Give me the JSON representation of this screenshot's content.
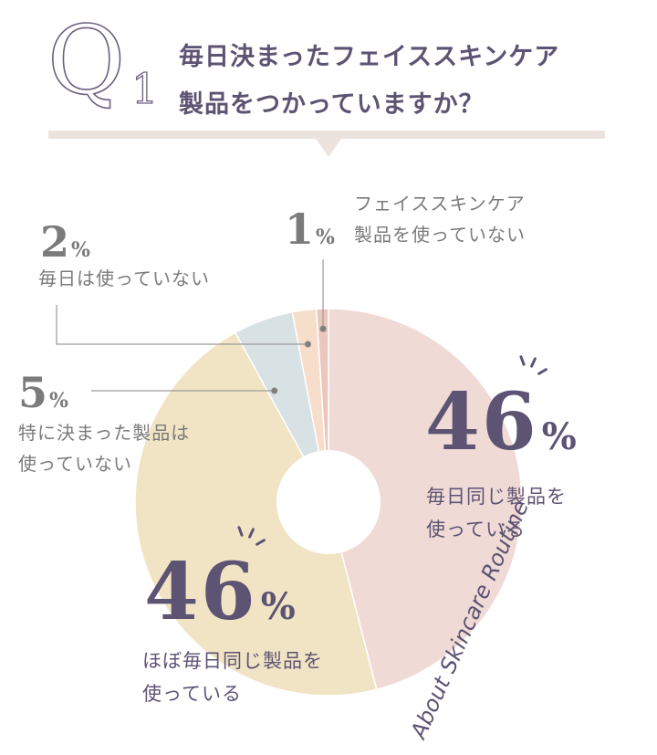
{
  "header": {
    "q_letter": "Q",
    "q_number": "1",
    "question_line1": "毎日決まったフェイススキンケア",
    "question_line2": "製品をつかっていますか？"
  },
  "side_text": "About Skincare Routine",
  "colors": {
    "accent": "#5d5373",
    "gray_text": "#7b7b7b",
    "slice_same_daily": "#f0dad6",
    "slice_mostly_same": "#f1e4c4",
    "slice_not_specific": "#d8e1e4",
    "slice_not_daily": "#f6decb",
    "slice_no_skincare": "#ebc6bc"
  },
  "chart_data": {
    "type": "pie",
    "donut": true,
    "slices": [
      {
        "label_line1": "毎日同じ製品を",
        "label_line2": "使っている",
        "value": 46,
        "number": "46",
        "sign": "%",
        "color": "#f0dad6"
      },
      {
        "label_line1": "ほぼ毎日同じ製品を",
        "label_line2": "使っている",
        "value": 46,
        "number": "46",
        "sign": "%",
        "color": "#f1e4c4"
      },
      {
        "label_line1": "特に決まった製品は",
        "label_line2": "使っていない",
        "value": 5,
        "number": "5",
        "sign": "%",
        "color": "#d8e1e4"
      },
      {
        "label_line1": "毎日は使っていない",
        "label_line2": "",
        "value": 2,
        "number": "2",
        "sign": "%",
        "color": "#f6decb"
      },
      {
        "label_line1": "フェイススキンケア",
        "label_line2": "製品を使っていない",
        "value": 1,
        "number": "1",
        "sign": "%",
        "color": "#ebc6bc"
      }
    ]
  }
}
